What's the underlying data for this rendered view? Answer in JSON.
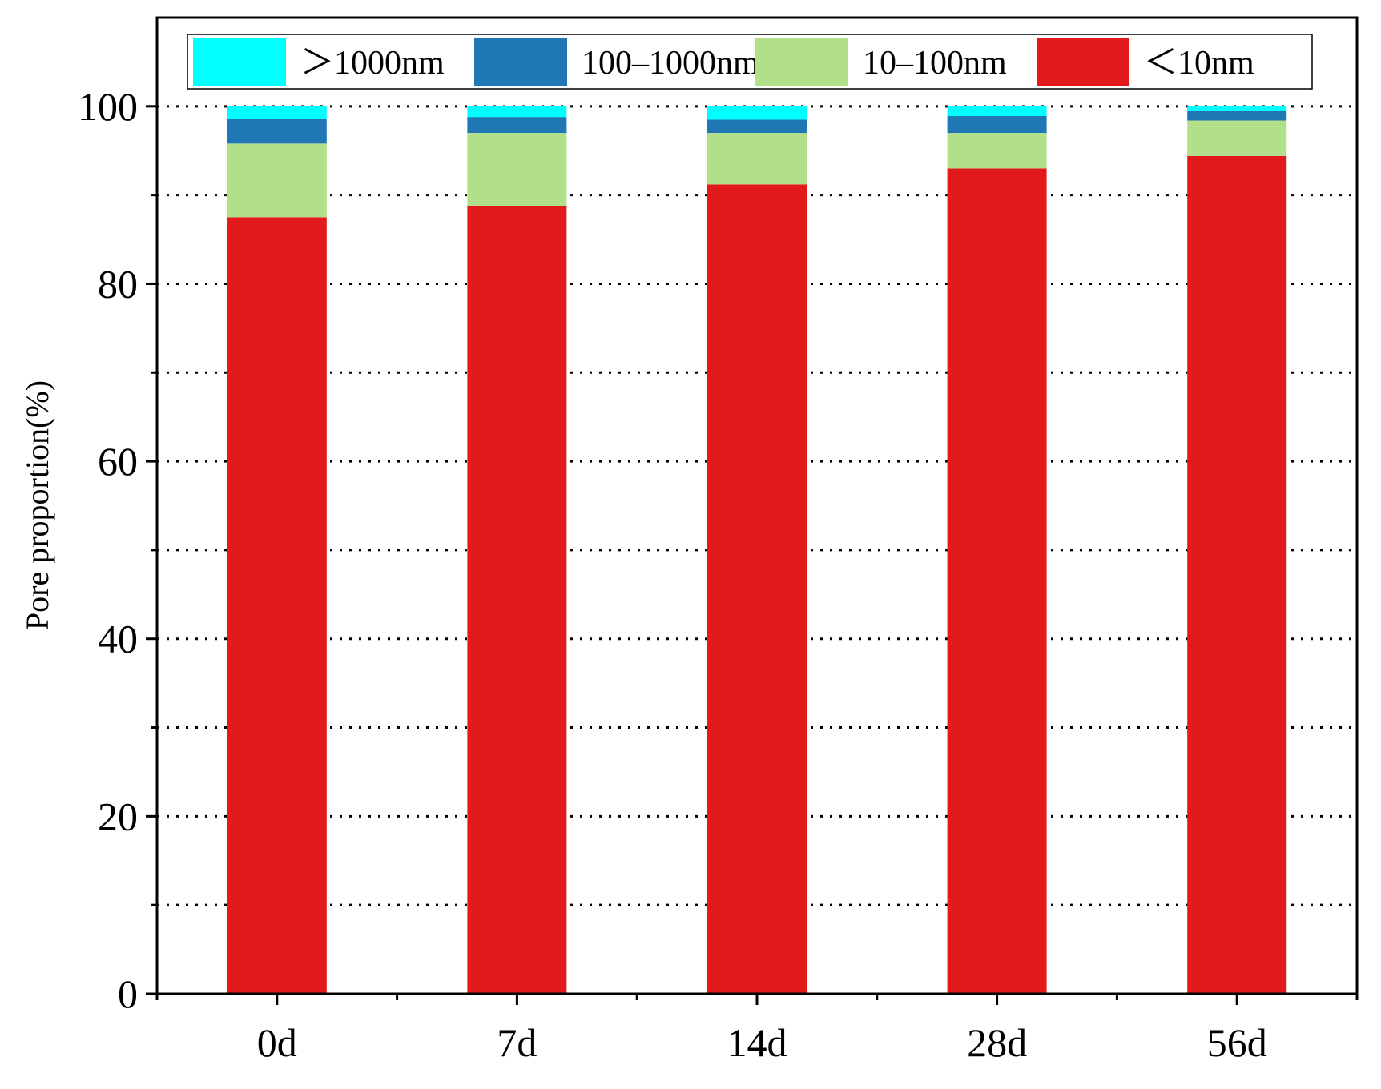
{
  "chart_data": {
    "type": "bar",
    "stacked": true,
    "categories": [
      "0d",
      "7d",
      "14d",
      "28d",
      "56d"
    ],
    "series": [
      {
        "name": "＜10nm",
        "color": "#e31a1c",
        "values": [
          87.5,
          88.8,
          91.2,
          93.0,
          94.4
        ]
      },
      {
        "name": "10–100nm",
        "color": "#b2df8a",
        "values": [
          8.3,
          8.2,
          5.8,
          4.0,
          4.0
        ]
      },
      {
        "name": "100–1000nm",
        "color": "#1f78b4",
        "values": [
          2.8,
          1.8,
          1.5,
          1.9,
          1.1
        ]
      },
      {
        "name": "＞1000nm",
        "color": "#00ffff",
        "values": [
          1.4,
          1.2,
          1.5,
          1.1,
          0.5
        ]
      }
    ],
    "legend_order": [
      "＞1000nm",
      "100–1000nm",
      "10–100nm",
      "＜10nm"
    ],
    "xlabel": "",
    "ylabel": "Pore proportion(%)",
    "ylim": [
      0,
      110
    ],
    "yticks": [
      0,
      20,
      40,
      60,
      80,
      100
    ],
    "grid": "dotted horizontal",
    "legend_placement": "top"
  }
}
